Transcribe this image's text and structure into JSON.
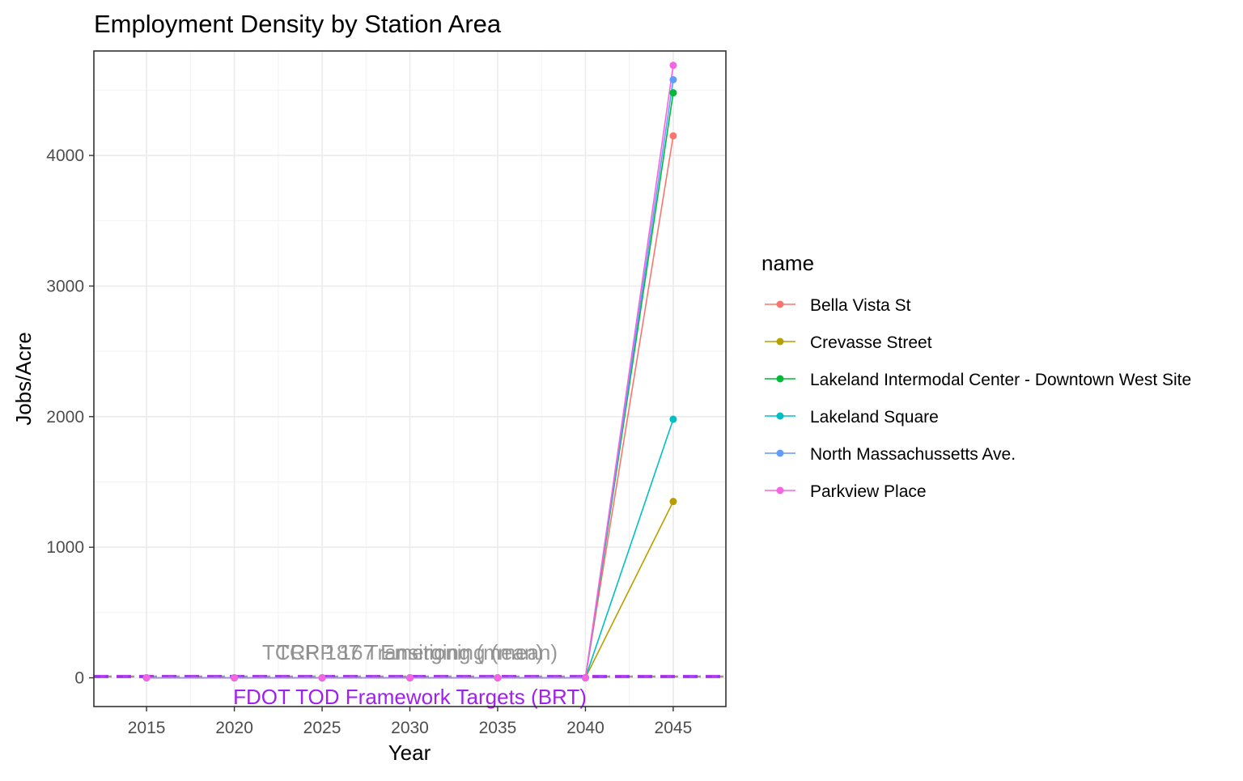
{
  "chart_data": {
    "type": "line",
    "title": "Employment Density by Station Area",
    "xlabel": "Year",
    "ylabel": "Jobs/Acre",
    "x": [
      2015,
      2020,
      2025,
      2030,
      2035,
      2040,
      2045
    ],
    "xlim": [
      2012,
      2048
    ],
    "ylim": [
      -220,
      4800
    ],
    "xticks": [
      2015,
      2020,
      2025,
      2030,
      2035,
      2040,
      2045
    ],
    "yticks": [
      0,
      1000,
      2000,
      3000,
      4000
    ],
    "grid": true,
    "legend": {
      "title": "name",
      "position": "right"
    },
    "series": [
      {
        "name": "Bella Vista St",
        "color": "#F8766D",
        "values": [
          0,
          0,
          0,
          0,
          0,
          0,
          4150
        ]
      },
      {
        "name": "Crevasse Street",
        "color": "#B79F00",
        "values": [
          0,
          0,
          0,
          0,
          0,
          0,
          1350
        ]
      },
      {
        "name": "Lakeland Intermodal Center - Downtown West Site",
        "color": "#00BA38",
        "values": [
          0,
          0,
          0,
          0,
          0,
          0,
          4480
        ]
      },
      {
        "name": "Lakeland Square",
        "color": "#00BFC4",
        "values": [
          0,
          0,
          0,
          0,
          0,
          0,
          1980
        ]
      },
      {
        "name": "North Massachussetts Ave.",
        "color": "#619CFF",
        "values": [
          0,
          0,
          0,
          0,
          0,
          0,
          4580
        ]
      },
      {
        "name": "Parkview Place",
        "color": "#F564E3",
        "values": [
          0,
          0,
          0,
          0,
          0,
          0,
          4690
        ]
      }
    ],
    "reference_lines": [
      {
        "label": "TCRP 167 Emerging (mean)",
        "value": 8,
        "color": "#999999",
        "style": "dashed",
        "label_x": 2030
      },
      {
        "label": "TCRP 187 Transitioning (mean)",
        "value": 12,
        "color": "#999999",
        "style": "dashed",
        "label_x": 2030
      },
      {
        "label": "FDOT TOD Framework Targets (BRT)",
        "value": 10,
        "color": "#A020F0",
        "style": "dashed",
        "label_x": 2030
      }
    ]
  }
}
